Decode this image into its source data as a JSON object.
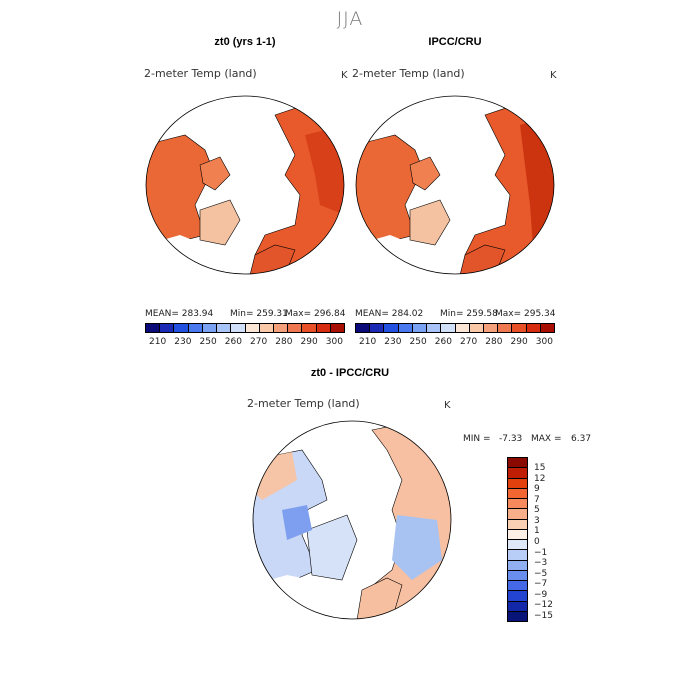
{
  "season": "JJA",
  "panel_left": {
    "title": "zt0 (yrs 1-1)",
    "variable": "2-meter Temp (land)",
    "unit": "K",
    "mean": "MEAN= 283.94",
    "min": "Min= 259.31",
    "max": "Max= 296.84"
  },
  "panel_right": {
    "title": "IPCC/CRU",
    "variable": "2-meter Temp (land)",
    "unit": "K",
    "mean": "MEAN= 284.02",
    "min": "Min= 259.58",
    "max": "Max= 295.34"
  },
  "colorbar_top": {
    "colors": [
      "#0a0a78",
      "#1a2ab4",
      "#2250e0",
      "#4a78ee",
      "#7aa2f4",
      "#a8c4f8",
      "#d0e0fa",
      "#fbe6d6",
      "#f8c8a8",
      "#f4a07a",
      "#ef7850",
      "#e85028",
      "#d62c10",
      "#a80e04"
    ],
    "ticks": [
      "210",
      "230",
      "250",
      "260",
      "270",
      "280",
      "290",
      "300"
    ]
  },
  "panel_diff": {
    "title": "zt0 - IPCC/CRU",
    "variable": "2-meter Temp (land)",
    "unit": "K",
    "min_label": "MIN =",
    "min_value": "-7.33",
    "max_label": "MAX =",
    "max_value": "6.37"
  },
  "colorbar_diff": {
    "colors": [
      "#8a0a00",
      "#c01e04",
      "#e2400c",
      "#f26632",
      "#f68a5c",
      "#f8ae88",
      "#fad0b4",
      "#fdf0e6",
      "#dfe8f8",
      "#b8cef6",
      "#90b0f2",
      "#6a8eee",
      "#4468e6",
      "#2244d0",
      "#1228a8",
      "#081478"
    ],
    "ticks": [
      "15",
      "12",
      "9",
      "7",
      "5",
      "3",
      "1",
      "0",
      "−1",
      "−3",
      "−5",
      "−7",
      "−9",
      "−12",
      "−15"
    ]
  }
}
